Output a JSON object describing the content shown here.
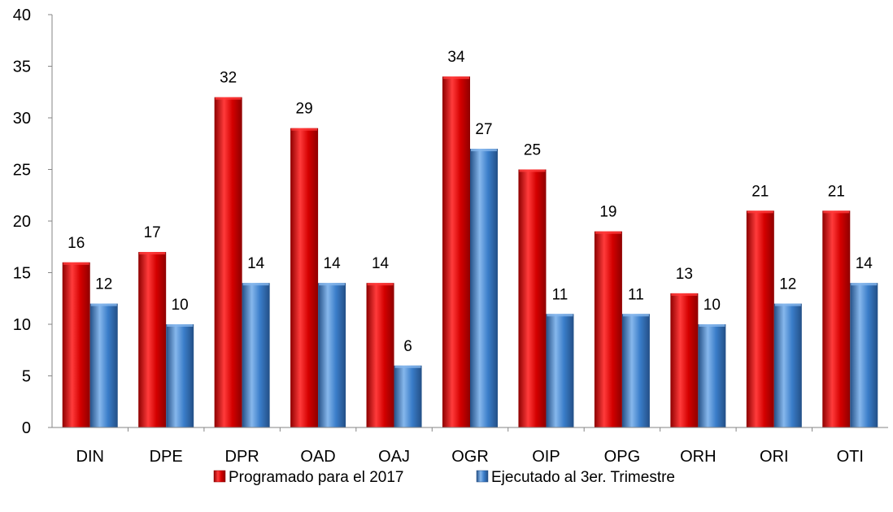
{
  "chart_data": {
    "type": "bar",
    "categories": [
      "DIN",
      "DPE",
      "DPR",
      "OAD",
      "OAJ",
      "OGR",
      "OIP",
      "OPG",
      "ORH",
      "ORI",
      "OTI"
    ],
    "series": [
      {
        "name": "Programado para el 2017",
        "values": [
          16,
          17,
          32,
          29,
          14,
          34,
          25,
          19,
          13,
          21,
          21
        ],
        "color": "#d40000",
        "color_light": "#ff3b3b",
        "color_dark": "#8e0000"
      },
      {
        "name": "Ejecutado al 3er. Trimestre",
        "values": [
          12,
          10,
          14,
          14,
          6,
          27,
          11,
          11,
          10,
          12,
          14
        ],
        "color": "#3a7dc9",
        "color_light": "#86b7ec",
        "color_dark": "#234f86"
      }
    ],
    "ylim": [
      0,
      40
    ],
    "yticks": [
      0,
      5,
      10,
      15,
      20,
      25,
      30,
      35,
      40
    ],
    "title": "",
    "xlabel": "",
    "ylabel": "",
    "grid": false,
    "legend_position": "bottom",
    "data_labels": true
  }
}
